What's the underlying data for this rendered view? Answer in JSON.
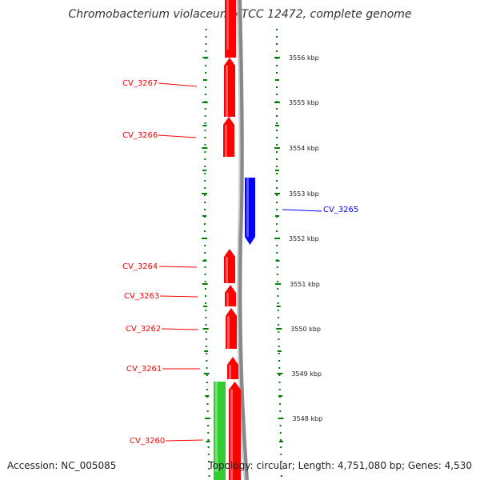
{
  "title": "Chromobacterium violaceum ATCC 12472, complete genome",
  "footer": {
    "accession": "Accession: NC_005085",
    "summary": "Topology: circular; Length: 4,751,080 bp; Genes: 4,530"
  },
  "colors": {
    "forward": "#ff0000",
    "reverse": "#0000ff",
    "other": "#33cc33",
    "backbone": "#888888",
    "ticks": "#008000"
  },
  "chart_data": {
    "type": "genome-map",
    "units": "kbp",
    "ticks": [
      "3556 kbp",
      "3555 kbp",
      "3554 kbp",
      "3553 kbp",
      "3552 kbp",
      "3551 kbp",
      "3550 kbp",
      "3549 kbp",
      "3548 kbp"
    ],
    "genes": [
      {
        "label": "",
        "strand": "forward"
      },
      {
        "label": "CV_3267",
        "strand": "forward"
      },
      {
        "label": "CV_3266",
        "strand": "forward"
      },
      {
        "label": "CV_3265",
        "strand": "reverse"
      },
      {
        "label": "CV_3264",
        "strand": "forward"
      },
      {
        "label": "CV_3263",
        "strand": "forward"
      },
      {
        "label": "CV_3262",
        "strand": "forward"
      },
      {
        "label": "CV_3261",
        "strand": "forward"
      },
      {
        "label": "CV_3260",
        "strand": "forward"
      },
      {
        "label": "",
        "strand": "other"
      }
    ]
  }
}
